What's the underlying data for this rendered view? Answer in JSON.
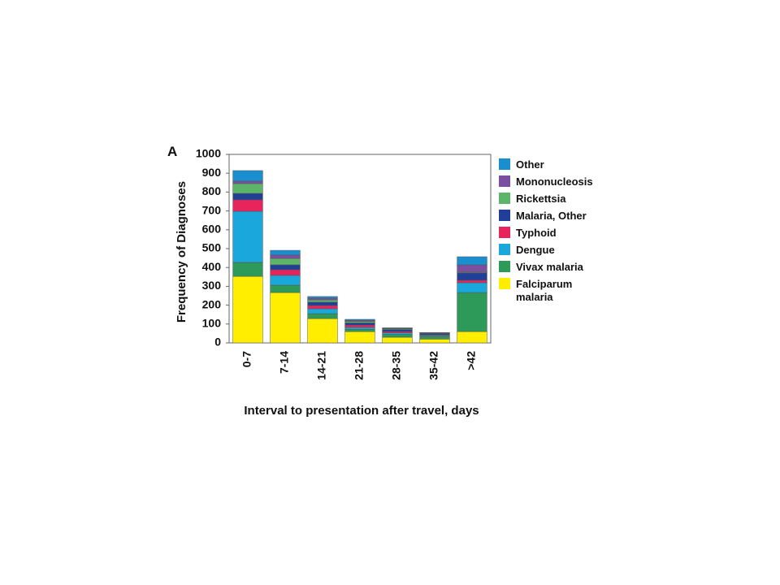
{
  "chart_data": {
    "type": "stacked_bar",
    "panel_label": "A",
    "x_label": "Interval to presentation after travel, days",
    "y_label": "Frequency of Diagnoses",
    "categories": [
      "0-7",
      "7-14",
      "14-21",
      "21-28",
      "28-35",
      "35-42",
      ">42"
    ],
    "ylim": [
      0,
      1000
    ],
    "yticks": [
      0,
      100,
      200,
      300,
      400,
      500,
      600,
      700,
      800,
      900,
      1000
    ],
    "series": [
      {
        "name": "Falciparum malaria",
        "color": "#ffee00",
        "values": [
          353,
          267,
          129,
          60,
          30,
          20,
          60
        ]
      },
      {
        "name": "Vivax malaria",
        "color": "#2e9a5a",
        "values": [
          74,
          39,
          26,
          12,
          15,
          13,
          207
        ]
      },
      {
        "name": "Dengue",
        "color": "#1aa8dc",
        "values": [
          271,
          52,
          26,
          10,
          8,
          6,
          52
        ]
      },
      {
        "name": "Typhoid",
        "color": "#e8245c",
        "values": [
          61,
          30,
          17,
          12,
          7,
          4,
          13
        ]
      },
      {
        "name": "Malaria, Other",
        "color": "#1f3f99",
        "values": [
          34,
          26,
          18,
          12,
          10,
          6,
          39
        ]
      },
      {
        "name": "Rickettsia",
        "color": "#5db56a",
        "values": [
          52,
          34,
          12,
          8,
          4,
          2,
          4
        ]
      },
      {
        "name": "Mononucleosis",
        "color": "#7b4fa0",
        "values": [
          13,
          18,
          9,
          5,
          3,
          2,
          39
        ]
      },
      {
        "name": "Other",
        "color": "#1a8fd0",
        "values": [
          56,
          25,
          9,
          6,
          3,
          2,
          43
        ]
      }
    ]
  }
}
